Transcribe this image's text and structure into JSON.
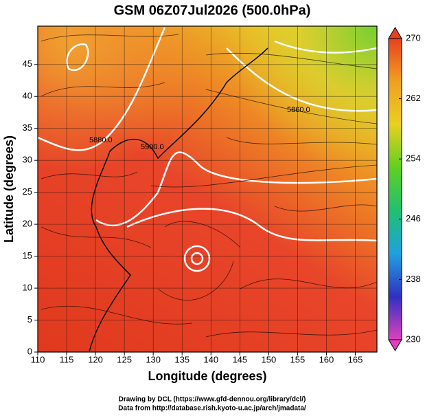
{
  "chart_data": {
    "type": "map",
    "title": "GSM 06Z07Jul2026 (500.0hPa)",
    "xlabel": "Longitude (degrees)",
    "ylabel": "Latitude  (degrees)",
    "xlim": [
      110,
      168.75
    ],
    "ylim": [
      0,
      51
    ],
    "xticks": [
      110,
      115,
      120,
      125,
      130,
      135,
      140,
      145,
      150,
      155,
      160,
      165
    ],
    "yticks": [
      0,
      5,
      10,
      15,
      20,
      25,
      30,
      35,
      40,
      45
    ],
    "grid": true,
    "colorbar": {
      "lim": [
        230,
        270
      ],
      "ticks": [
        230,
        238,
        246,
        254,
        262,
        270
      ],
      "colors": [
        "#e040c0",
        "#3030c0",
        "#20a0e0",
        "#20c070",
        "#60d020",
        "#e8d020",
        "#f0a020",
        "#e84020"
      ]
    },
    "contour_labels": [
      "5880.0",
      "5860.0",
      "5900.0"
    ],
    "footer": [
      "Drawing by DCL (https://www.gfd-dennou.org/library/dcl/)",
      "Data from http://database.rish.kyoto-u.ac.jp/arch/jmadata/"
    ]
  }
}
